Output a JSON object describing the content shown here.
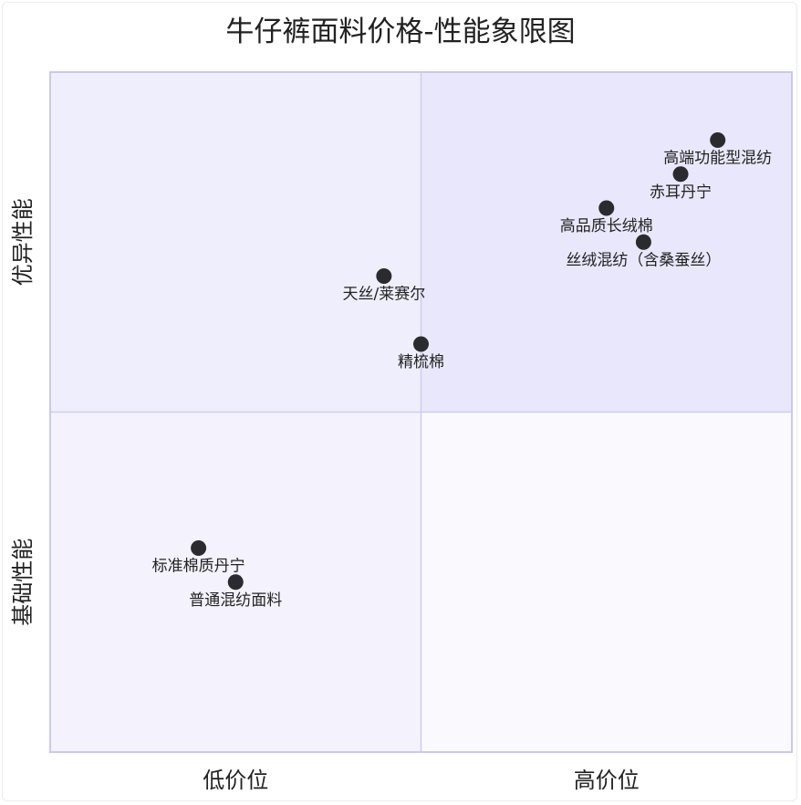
{
  "chart_data": {
    "type": "scatter",
    "title": "牛仔裤面料价格-性能象限图",
    "x_axis": {
      "low_label": "低价位",
      "high_label": "高价位",
      "range": [
        0,
        1
      ]
    },
    "y_axis": {
      "low_label": "基础性能",
      "high_label": "优异性能",
      "range": [
        0,
        1
      ]
    },
    "quadrant_colors": {
      "top_right": "#e9e7fb",
      "top_left": "#efeefc",
      "bottom_left": "#f3f2fd",
      "bottom_right": "#faf9fe"
    },
    "point_color": "#2b2b2f",
    "points": [
      {
        "label": "高端功能型混纺",
        "x": 0.9,
        "y": 0.9
      },
      {
        "label": "赤耳丹宁",
        "x": 0.85,
        "y": 0.85
      },
      {
        "label": "高品质长绒棉",
        "x": 0.75,
        "y": 0.8
      },
      {
        "label": "丝绒混纺（含桑蚕丝）",
        "x": 0.8,
        "y": 0.75
      },
      {
        "label": "天丝/莱赛尔",
        "x": 0.45,
        "y": 0.7
      },
      {
        "label": "精梳棉",
        "x": 0.5,
        "y": 0.6
      },
      {
        "label": "标准棉质丹宁",
        "x": 0.2,
        "y": 0.3
      },
      {
        "label": "普通混纺面料",
        "x": 0.25,
        "y": 0.25
      }
    ]
  }
}
